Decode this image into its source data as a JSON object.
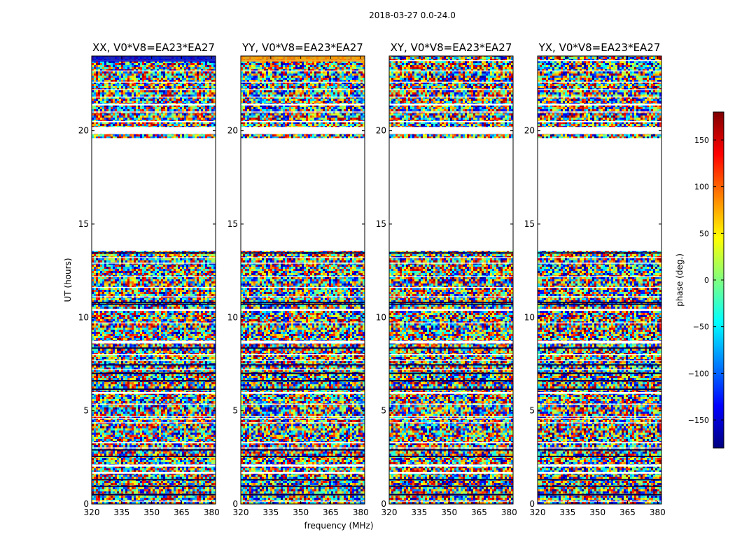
{
  "figure": {
    "suptitle": "2018-03-27 0.0-24.0",
    "xlabel": "frequency (MHz)",
    "ylabel": "UT (hours)"
  },
  "colorbar": {
    "label": "phase (deg.)",
    "range": [
      -180,
      180
    ],
    "ticks": [
      -150,
      -100,
      -50,
      0,
      50,
      100,
      150
    ],
    "tick_labels": [
      "−150",
      "−100",
      "−50",
      "0",
      "50",
      "100",
      "150"
    ],
    "colormap": [
      "#00007f",
      "#0000ff",
      "#007fff",
      "#00ffff",
      "#7fff7f",
      "#ffff00",
      "#ff7f00",
      "#ff0000",
      "#7f0000"
    ]
  },
  "chart_data": {
    "type": "heatmap",
    "title": "2018-03-27 0.0-24.0",
    "xlabel": "frequency (MHz)",
    "ylabel": "UT (hours)",
    "xlim": [
      320,
      382
    ],
    "ylim": [
      0,
      24
    ],
    "x_ticks": [
      320,
      335,
      350,
      365,
      380
    ],
    "y_ticks": [
      0,
      5,
      10,
      15,
      20
    ],
    "value_label": "phase (deg.)",
    "value_range": [
      -180,
      180
    ],
    "panels": [
      {
        "title": "XX, V0*V8=EA23*EA27",
        "pol": "XX"
      },
      {
        "title": "YY, V0*V8=EA23*EA27",
        "pol": "YY"
      },
      {
        "title": "XY, V0*V8=EA23*EA27",
        "pol": "XY"
      },
      {
        "title": "YX, V0*V8=EA23*EA27",
        "pol": "YX"
      }
    ],
    "data_gaps_ut_hours": [
      [
        1.62,
        1.72
      ],
      [
        2.0,
        2.12
      ],
      [
        3.25,
        3.32
      ],
      [
        4.55,
        4.6
      ],
      [
        5.9,
        6.0
      ],
      [
        8.6,
        8.75
      ],
      [
        10.35,
        10.45
      ],
      [
        13.55,
        19.6
      ],
      [
        19.82,
        20.2
      ],
      [
        20.45,
        20.52
      ],
      [
        21.35,
        21.45
      ]
    ],
    "flagged_rows_ut_hours": [
      0.5,
      0.95,
      1.3,
      2.55,
      2.9,
      6.15,
      6.6,
      7.0,
      7.45,
      8.35,
      10.7,
      10.8,
      13.45
    ]
  }
}
